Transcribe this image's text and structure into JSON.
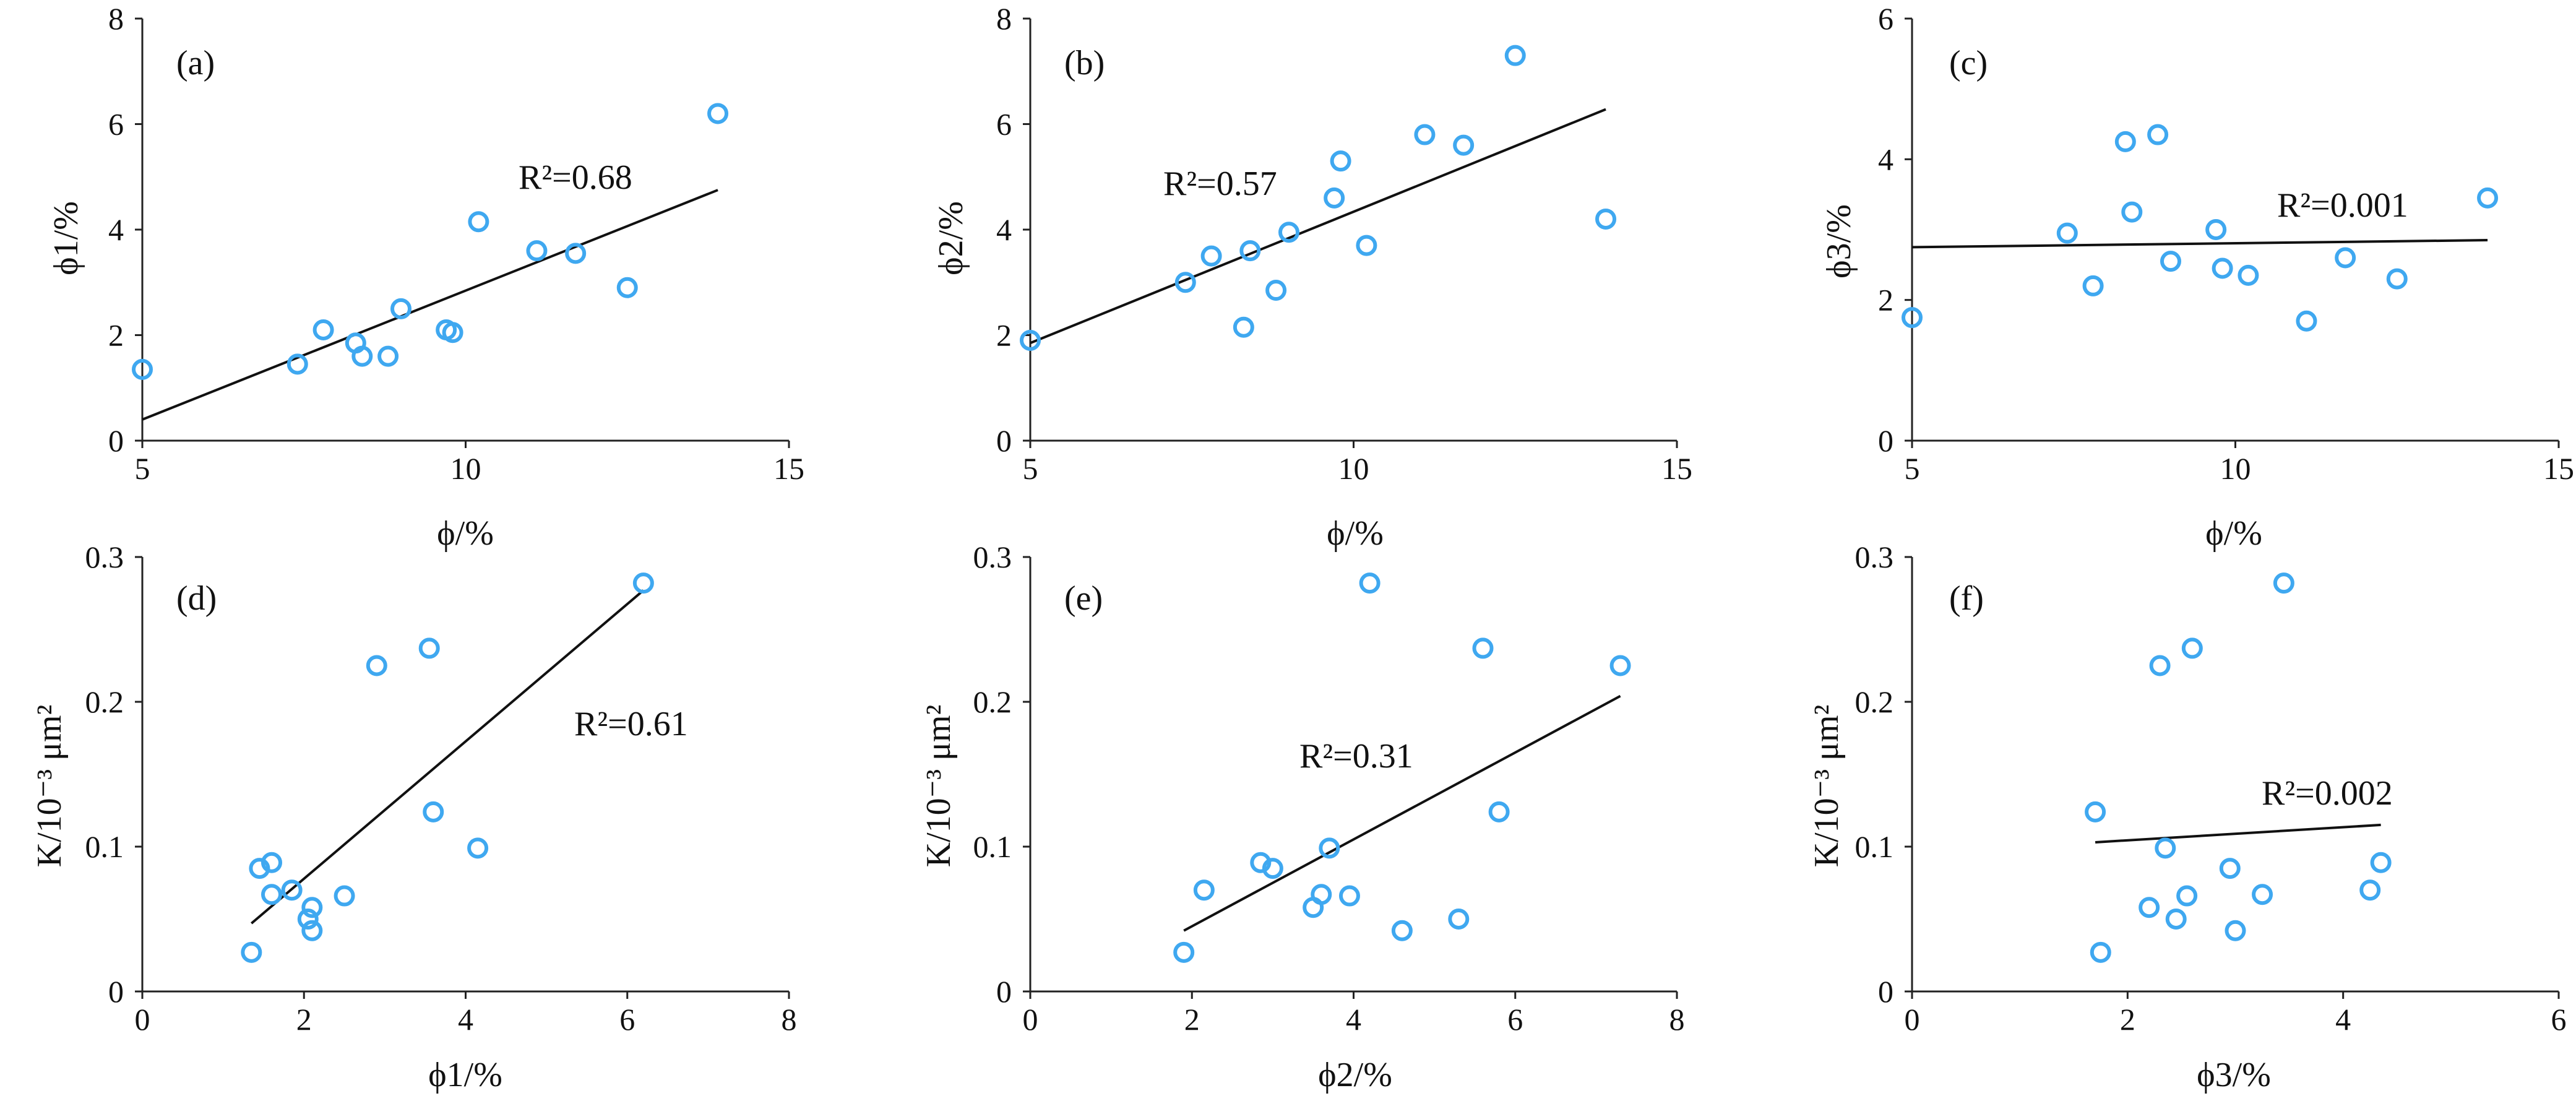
{
  "chart_data": [
    {
      "type": "scatter",
      "panel": "(a)",
      "xlabel": "ϕ/%",
      "ylabel": "ϕ1/%",
      "xlim": [
        5,
        15
      ],
      "ylim": [
        0,
        8
      ],
      "xticks": [
        5,
        10,
        15
      ],
      "yticks": [
        0,
        2,
        4,
        6,
        8
      ],
      "marker_color": "#3fa8f0",
      "x": [
        5.0,
        7.4,
        7.8,
        8.3,
        8.4,
        8.8,
        9.0,
        9.7,
        9.8,
        10.2,
        11.1,
        11.7,
        12.5,
        13.9
      ],
      "y": [
        1.35,
        1.45,
        2.1,
        1.85,
        1.6,
        1.6,
        2.5,
        2.1,
        2.05,
        4.15,
        3.6,
        3.55,
        2.9,
        6.2
      ],
      "fit": {
        "x": [
          5.0,
          13.9
        ],
        "y": [
          0.4,
          4.75
        ]
      },
      "r2_label": "R²=0.68"
    },
    {
      "type": "scatter",
      "panel": "(b)",
      "xlabel": "ϕ/%",
      "ylabel": "ϕ2/%",
      "xlim": [
        5,
        15
      ],
      "ylim": [
        0,
        8
      ],
      "xticks": [
        5,
        10,
        15
      ],
      "yticks": [
        0,
        2,
        4,
        6,
        8
      ],
      "marker_color": "#3fa8f0",
      "x": [
        5.0,
        7.4,
        7.8,
        8.3,
        8.4,
        8.8,
        9.0,
        9.7,
        9.8,
        10.2,
        11.1,
        11.7,
        12.5,
        13.9
      ],
      "y": [
        1.9,
        3.0,
        3.5,
        2.15,
        3.6,
        2.85,
        3.95,
        4.6,
        5.3,
        3.7,
        5.8,
        5.6,
        7.3,
        4.2
      ],
      "fit": {
        "x": [
          5.0,
          13.9
        ],
        "y": [
          1.85,
          6.28
        ]
      },
      "r2_label": "R²=0.57"
    },
    {
      "type": "scatter",
      "panel": "(c)",
      "xlabel": "ϕ/%",
      "ylabel": "ϕ3/%",
      "xlim": [
        5,
        15
      ],
      "ylim": [
        0,
        6
      ],
      "xticks": [
        5,
        10,
        15
      ],
      "yticks": [
        0,
        2,
        4,
        6
      ],
      "marker_color": "#3fa8f0",
      "x": [
        5.0,
        7.4,
        7.8,
        8.3,
        8.4,
        8.8,
        9.0,
        9.7,
        9.8,
        10.2,
        11.1,
        11.7,
        12.5,
        13.9
      ],
      "y": [
        1.75,
        2.95,
        2.2,
        4.25,
        3.25,
        4.35,
        2.55,
        3.0,
        2.45,
        2.35,
        1.7,
        2.6,
        2.3,
        3.45
      ],
      "fit": {
        "x": [
          5.0,
          13.9
        ],
        "y": [
          2.75,
          2.85
        ]
      },
      "r2_label": "R²=0.001"
    },
    {
      "type": "scatter",
      "panel": "(d)",
      "xlabel": "ϕ1/%",
      "ylabel": "K/10⁻³ μm²",
      "xlim": [
        0,
        8
      ],
      "ylim": [
        0,
        0.3
      ],
      "xticks": [
        0,
        2,
        4,
        6,
        8
      ],
      "yticks": [
        0,
        0.1,
        0.2,
        0.3
      ],
      "marker_color": "#3fa8f0",
      "x": [
        1.35,
        1.45,
        1.6,
        1.6,
        1.85,
        2.05,
        2.1,
        2.1,
        2.5,
        2.9,
        3.55,
        3.6,
        4.15,
        6.2
      ],
      "y": [
        0.027,
        0.085,
        0.067,
        0.089,
        0.07,
        0.05,
        0.058,
        0.042,
        0.066,
        0.225,
        0.237,
        0.124,
        0.099,
        0.282
      ],
      "fit": {
        "x": [
          1.35,
          6.2
        ],
        "y": [
          0.047,
          0.277
        ]
      },
      "r2_label": "R²=0.61"
    },
    {
      "type": "scatter",
      "panel": "(e)",
      "xlabel": "ϕ2/%",
      "ylabel": "K/10⁻³ μm²",
      "xlim": [
        0,
        8
      ],
      "ylim": [
        0,
        0.3
      ],
      "xticks": [
        0,
        2,
        4,
        6,
        8
      ],
      "yticks": [
        0,
        0.1,
        0.2,
        0.3
      ],
      "marker_color": "#3fa8f0",
      "x": [
        1.9,
        2.15,
        2.85,
        3.0,
        3.5,
        3.6,
        3.7,
        3.95,
        4.2,
        4.6,
        5.3,
        5.6,
        5.8,
        7.3
      ],
      "y": [
        0.027,
        0.07,
        0.089,
        0.085,
        0.058,
        0.067,
        0.099,
        0.066,
        0.282,
        0.042,
        0.05,
        0.237,
        0.124,
        0.225
      ],
      "fit": {
        "x": [
          1.9,
          7.3
        ],
        "y": [
          0.042,
          0.204
        ]
      },
      "r2_label": "R²=0.31"
    },
    {
      "type": "scatter",
      "panel": "(f)",
      "xlabel": "ϕ3/%",
      "ylabel": "K/10⁻³ μm²",
      "xlim": [
        0,
        6
      ],
      "ylim": [
        0,
        0.3
      ],
      "xticks": [
        0,
        2,
        4,
        6
      ],
      "yticks": [
        0,
        0.1,
        0.2,
        0.3
      ],
      "marker_color": "#3fa8f0",
      "x": [
        1.7,
        1.75,
        2.2,
        2.3,
        2.35,
        2.45,
        2.55,
        2.6,
        2.95,
        3.0,
        3.25,
        3.45,
        4.25,
        4.35
      ],
      "y": [
        0.124,
        0.027,
        0.058,
        0.225,
        0.099,
        0.05,
        0.066,
        0.237,
        0.085,
        0.042,
        0.067,
        0.282,
        0.07,
        0.089
      ],
      "fit": {
        "x": [
          1.7,
          4.35
        ],
        "y": [
          0.103,
          0.115
        ]
      },
      "r2_label": "R²=0.002"
    }
  ]
}
